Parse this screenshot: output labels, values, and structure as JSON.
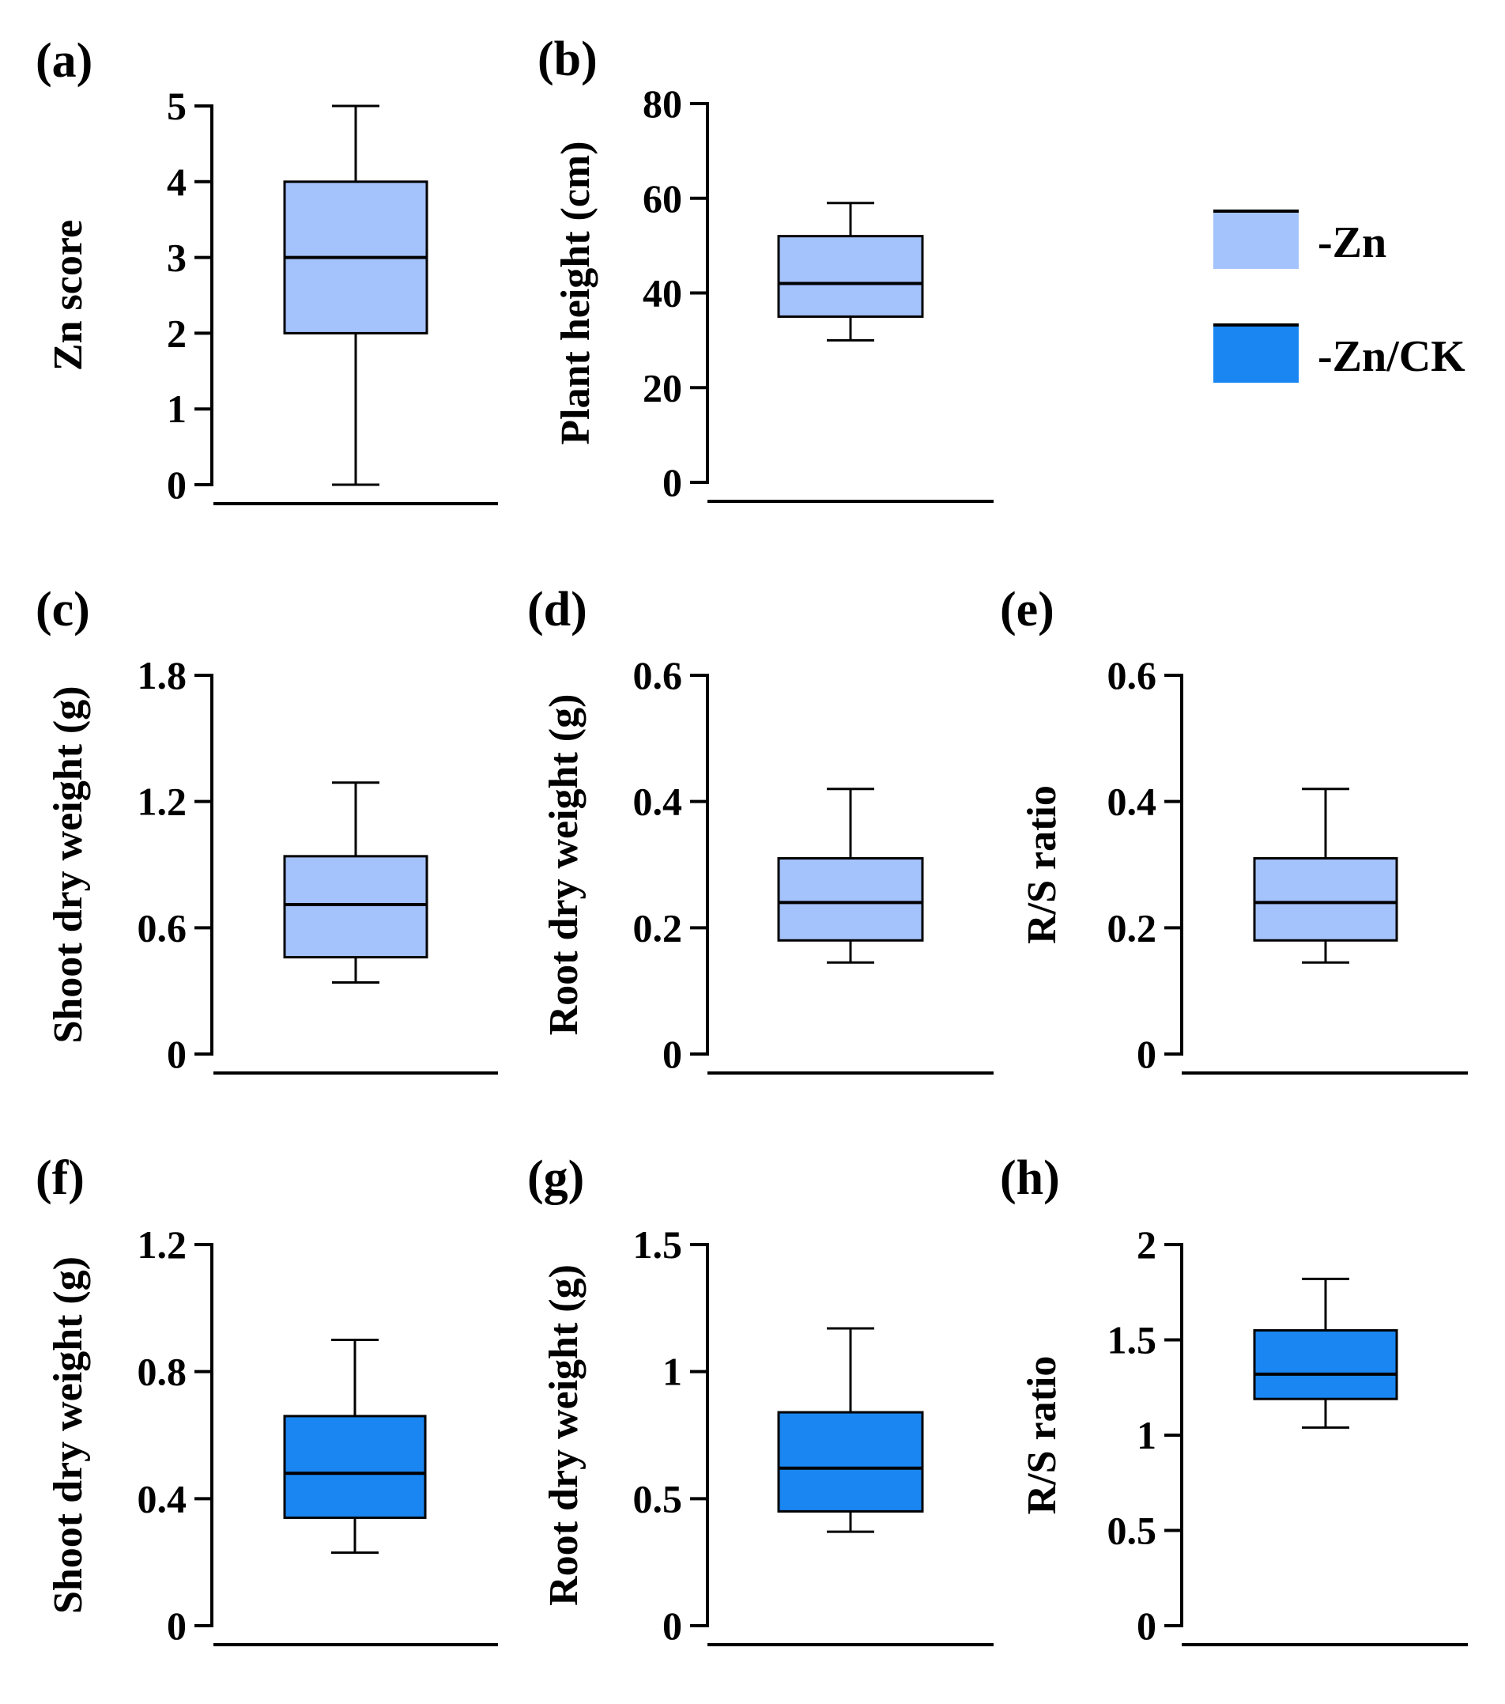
{
  "legend": {
    "items": [
      {
        "label": "-Zn",
        "color": "#a4c2fb"
      },
      {
        "label": "-Zn/CK",
        "color": "#1a86f2"
      }
    ]
  },
  "chart_data": [
    {
      "type": "box",
      "panel_label": "(a)",
      "ylabel": "Zn score",
      "ylim": [
        0,
        5
      ],
      "ticks": [
        0,
        1,
        2,
        3,
        4,
        5
      ],
      "tick_labels": [
        "0",
        "1",
        "2",
        "3",
        "4",
        "5"
      ],
      "color": "#a4c2fb",
      "series": "-Zn",
      "box": {
        "min": 0,
        "q1": 2,
        "median": 3,
        "q3": 4,
        "max": 5
      }
    },
    {
      "type": "box",
      "panel_label": "(b)",
      "ylabel": "Plant height (cm)",
      "ylim": [
        0,
        80
      ],
      "ticks": [
        0,
        20,
        40,
        60,
        80
      ],
      "tick_labels": [
        "0",
        "20",
        "40",
        "60",
        "80"
      ],
      "color": "#a4c2fb",
      "series": "-Zn",
      "box": {
        "min": 30,
        "q1": 35,
        "median": 42,
        "q3": 52,
        "max": 59
      }
    },
    {
      "type": "box",
      "panel_label": "(c)",
      "ylabel": "Shoot dry weight (g)",
      "ylim": [
        0,
        1.8
      ],
      "ticks": [
        0,
        0.6,
        1.2,
        1.8
      ],
      "tick_labels": [
        "0",
        "0.6",
        "1.2",
        "1.8"
      ],
      "color": "#a4c2fb",
      "series": "-Zn",
      "box": {
        "min": 0.34,
        "q1": 0.46,
        "median": 0.71,
        "q3": 0.94,
        "max": 1.29
      }
    },
    {
      "type": "box",
      "panel_label": "(d)",
      "ylabel": "Root dry weight (g)",
      "ylim": [
        0,
        0.6
      ],
      "ticks": [
        0,
        0.2,
        0.4,
        0.6
      ],
      "tick_labels": [
        "0",
        "0.2",
        "0.4",
        "0.6"
      ],
      "color": "#a4c2fb",
      "series": "-Zn",
      "box": {
        "min": 0.145,
        "q1": 0.18,
        "median": 0.24,
        "q3": 0.31,
        "max": 0.42
      }
    },
    {
      "type": "box",
      "panel_label": "(e)",
      "ylabel": "R/S ratio",
      "ylim": [
        0,
        0.6
      ],
      "ticks": [
        0,
        0.2,
        0.4,
        0.6
      ],
      "tick_labels": [
        "0",
        "0.2",
        "0.4",
        "0.6"
      ],
      "color": "#a4c2fb",
      "series": "-Zn",
      "box": {
        "min": 0.145,
        "q1": 0.18,
        "median": 0.24,
        "q3": 0.31,
        "max": 0.42
      }
    },
    {
      "type": "box",
      "panel_label": "(f)",
      "ylabel": "Shoot dry weight (g)",
      "ylim": [
        0,
        1.2
      ],
      "ticks": [
        0,
        0.4,
        0.8,
        1.2
      ],
      "tick_labels": [
        "0",
        "0.4",
        "0.8",
        "1.2"
      ],
      "color": "#1a86f2",
      "series": "-Zn/CK",
      "box": {
        "min": 0.23,
        "q1": 0.34,
        "median": 0.48,
        "q3": 0.66,
        "max": 0.9
      }
    },
    {
      "type": "box",
      "panel_label": "(g)",
      "ylabel": "Root dry weight (g)",
      "ylim": [
        0,
        1.5
      ],
      "ticks": [
        0,
        0.5,
        1,
        1.5
      ],
      "tick_labels": [
        "0",
        "0.5",
        "1",
        "1.5"
      ],
      "color": "#1a86f2",
      "series": "-Zn/CK",
      "box": {
        "min": 0.37,
        "q1": 0.45,
        "median": 0.62,
        "q3": 0.84,
        "max": 1.17
      }
    },
    {
      "type": "box",
      "panel_label": "(h)",
      "ylabel": "R/S ratio",
      "ylim": [
        0,
        2
      ],
      "ticks": [
        0,
        0.5,
        1,
        1.5,
        2
      ],
      "tick_labels": [
        "0",
        "0.5",
        "1",
        "1.5",
        "2"
      ],
      "color": "#1a86f2",
      "series": "-Zn/CK",
      "box": {
        "min": 1.04,
        "q1": 1.19,
        "median": 1.32,
        "q3": 1.55,
        "max": 1.82
      }
    }
  ]
}
